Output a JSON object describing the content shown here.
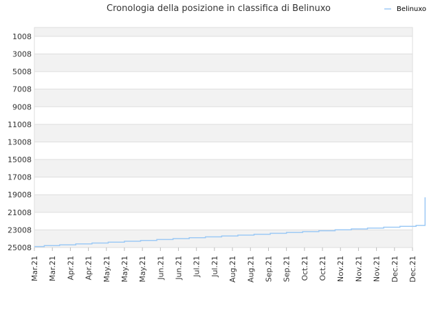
{
  "chart_data": {
    "type": "line",
    "title": "Cronologia della posizione in classifica di Belinuxo",
    "xlabel": "",
    "ylabel": "",
    "y_inverted": true,
    "ylim": [
      25008,
      0
    ],
    "y_ticks": [
      1008,
      3008,
      5008,
      7008,
      9008,
      11008,
      13008,
      15008,
      17008,
      19008,
      21008,
      23008,
      25008
    ],
    "x_ticks": [
      "Mar.21",
      "Mar.21",
      "Apr.21",
      "Apr.21",
      "May.21",
      "May.21",
      "May.21",
      "Jun.21",
      "Jun.21",
      "Jul.21",
      "Jul.21",
      "Aug.21",
      "Aug.21",
      "Sep.21",
      "Sep.21",
      "Oct.21",
      "Oct.21",
      "Nov.21",
      "Nov.21",
      "Nov.21",
      "Dec.21",
      "Dec.21"
    ],
    "grid": true,
    "legend_position": "top-right",
    "colors": {
      "line": "#9cc9f5",
      "band_alt": "#f2f2f2",
      "grid": "#dddddd",
      "axis": "#bbbbbb"
    },
    "series": [
      {
        "name": "Belinuxo",
        "points": [
          [
            0,
            24900
          ],
          [
            0.55,
            24900
          ],
          [
            0.55,
            24800
          ],
          [
            1.4,
            24800
          ],
          [
            1.4,
            24700
          ],
          [
            2.3,
            24700
          ],
          [
            2.3,
            24600
          ],
          [
            3.2,
            24600
          ],
          [
            3.2,
            24500
          ],
          [
            4.1,
            24500
          ],
          [
            4.1,
            24400
          ],
          [
            5.0,
            24400
          ],
          [
            5.0,
            24300
          ],
          [
            5.9,
            24300
          ],
          [
            5.9,
            24200
          ],
          [
            6.8,
            24200
          ],
          [
            6.8,
            24100
          ],
          [
            7.7,
            24100
          ],
          [
            7.7,
            24000
          ],
          [
            8.6,
            24000
          ],
          [
            8.6,
            23900
          ],
          [
            9.5,
            23900
          ],
          [
            9.5,
            23800
          ],
          [
            10.4,
            23800
          ],
          [
            10.4,
            23700
          ],
          [
            11.3,
            23700
          ],
          [
            11.3,
            23600
          ],
          [
            12.2,
            23600
          ],
          [
            12.2,
            23500
          ],
          [
            13.1,
            23500
          ],
          [
            13.1,
            23400
          ],
          [
            14.0,
            23400
          ],
          [
            14.0,
            23300
          ],
          [
            14.9,
            23300
          ],
          [
            14.9,
            23200
          ],
          [
            15.8,
            23200
          ],
          [
            15.8,
            23100
          ],
          [
            16.7,
            23100
          ],
          [
            16.7,
            23000
          ],
          [
            17.6,
            23000
          ],
          [
            17.6,
            22900
          ],
          [
            18.5,
            22900
          ],
          [
            18.5,
            22800
          ],
          [
            19.4,
            22800
          ],
          [
            19.4,
            22700
          ],
          [
            20.3,
            22700
          ],
          [
            20.3,
            22600
          ],
          [
            21.2,
            22600
          ],
          [
            21.2,
            22500
          ],
          [
            21.7,
            22500
          ],
          [
            21.7,
            19300
          ]
        ]
      }
    ]
  }
}
